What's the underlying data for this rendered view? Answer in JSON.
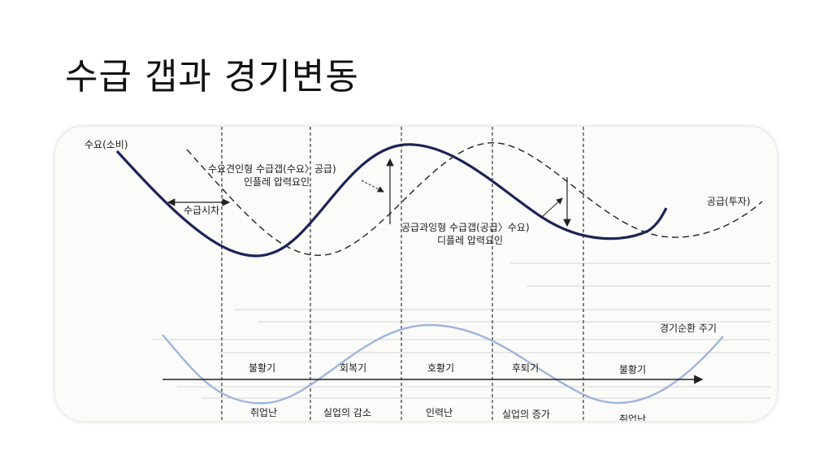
{
  "title": "수급 갭과 경기변동",
  "diagram": {
    "labels": {
      "demand": "수요(소비)",
      "supply": "공급(투자)",
      "lag": "수급시차",
      "demand_led_1": "수요견인형 수급갭(수요〉공급)",
      "demand_led_2": "인플레 압력요인",
      "supply_led_1": "공급과잉형 수급갭(공급〉수요)",
      "supply_led_2": "디플레 압력요인",
      "cycle": "경기순환 주기"
    },
    "phases": [
      "불황기",
      "회복기",
      "호황기",
      "후퇴기",
      "불황기"
    ],
    "employment": [
      "취업난",
      "실업의 감소",
      "인력난",
      "실업의 증가",
      "취업난"
    ],
    "colors": {
      "demand_curve": "#1c2456",
      "supply_curve": "#222222",
      "cycle_curve": "#9db6d8",
      "guide_line": "#333333"
    }
  }
}
